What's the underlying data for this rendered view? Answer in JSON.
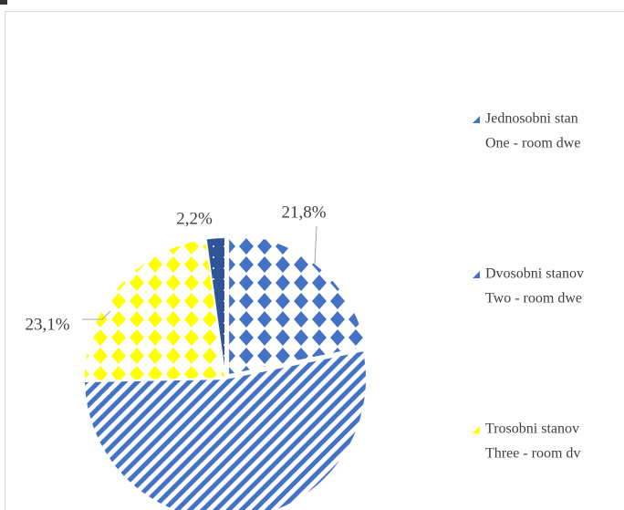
{
  "chart_data": {
    "type": "pie",
    "categories": [
      "Jednosobni stan",
      "Dvosobni stanov",
      "Trosobni stanov",
      null
    ],
    "subcategories": [
      "One - room dwe",
      "Two - room dwe",
      "Three - room dv",
      null
    ],
    "values": [
      21.8,
      52.9,
      23.1,
      2.2
    ],
    "value_labels": [
      "21,8%",
      null,
      "23,1%",
      "2,2%"
    ],
    "colors": [
      "#4472c4",
      "#4472c4",
      "#ffff00",
      "#2f5597"
    ],
    "legend": "right"
  }
}
